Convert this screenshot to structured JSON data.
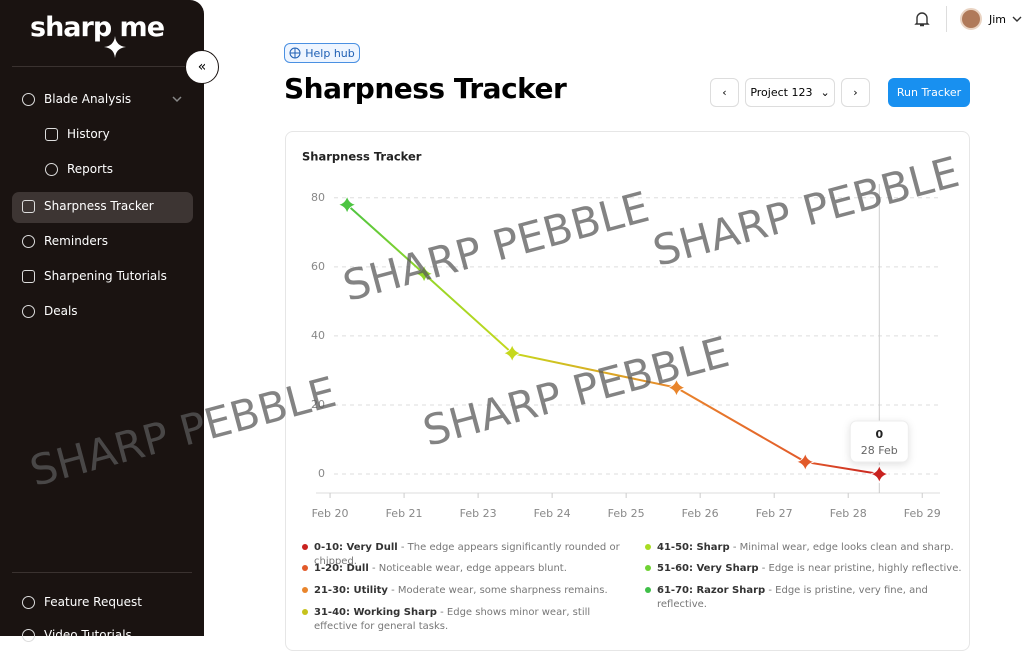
{
  "sidebar": {
    "logo": "sharp me",
    "nav": [
      "Blade Analysis",
      "History",
      "Reports",
      "Sharpness Tracker",
      "Reminders",
      "Sharpening Tutorials",
      "Deals"
    ],
    "footer": [
      "Feature Request",
      "Video Tutorials"
    ]
  },
  "header": {
    "user": "Jim",
    "help": "Help hub",
    "title": "Sharpness Tracker",
    "project": "Project 123",
    "run": "Run Tracker"
  },
  "chart_data": {
    "type": "line",
    "title": "Sharpness Tracker",
    "x": [
      0.23,
      1.27,
      2.46,
      4.68,
      6.42,
      7.42
    ],
    "xlim": [
      -0.19,
      8.24
    ],
    "xticks": [
      {
        "value": 0,
        "label": "Feb 20"
      },
      {
        "value": 1,
        "label": "Feb 21"
      },
      {
        "value": 2,
        "label": "Feb 23"
      },
      {
        "value": 3,
        "label": "Feb 24"
      },
      {
        "value": 4,
        "label": "Feb 25"
      },
      {
        "value": 5,
        "label": "Feb 26"
      },
      {
        "value": 6,
        "label": "Feb 27"
      },
      {
        "value": 7,
        "label": "Feb 28"
      },
      {
        "value": 8,
        "label": "Feb 29"
      }
    ],
    "ylim": [
      -5.5,
      84
    ],
    "yticks": [
      0,
      20,
      40,
      60,
      80
    ],
    "grid": true,
    "series": [
      {
        "name": "Sharpness",
        "values": [
          78,
          58,
          35,
          25,
          3.5,
          0
        ],
        "colors": [
          "#4cc441",
          "#93d62a",
          "#c6d81c",
          "#e9852c",
          "#e25a2a",
          "#c9221f"
        ]
      }
    ],
    "tooltip": {
      "date": "28 Feb"
    },
    "legend": [
      {
        "label": "0-10: Very Dull",
        "desc": "- The edge appears significantly rounded or chipped.",
        "color": "#c9221f"
      },
      {
        "label": "1-20: Dull",
        "desc": "- Noticeable wear, edge appears blunt.",
        "color": "#e25a2a"
      },
      {
        "label": "21-30: Utility",
        "desc": "- Moderate wear, some sharpness remains.",
        "color": "#e9852c"
      },
      {
        "label": "31-40: Working Sharp",
        "desc": "- Edge shows minor wear, still effective for general tasks.",
        "color": "#c6c21c"
      },
      {
        "label": "41-50: Sharp",
        "desc": "- Minimal wear, edge looks clean and sharp.",
        "color": "#a8dc22"
      },
      {
        "label": "51-60: Very Sharp",
        "desc": "- Edge is near pristine, highly reflective.",
        "color": "#6fd233"
      },
      {
        "label": "61-70: Razor Sharp",
        "desc": "- Edge is pristine, very fine, and reflective.",
        "color": "#3fbf48"
      }
    ]
  },
  "watermarks": [
    "SHARP PEBBLE",
    "SHARP PEBBLE",
    "SHARP PEBBLE",
    "SHARP PEBBLE"
  ]
}
